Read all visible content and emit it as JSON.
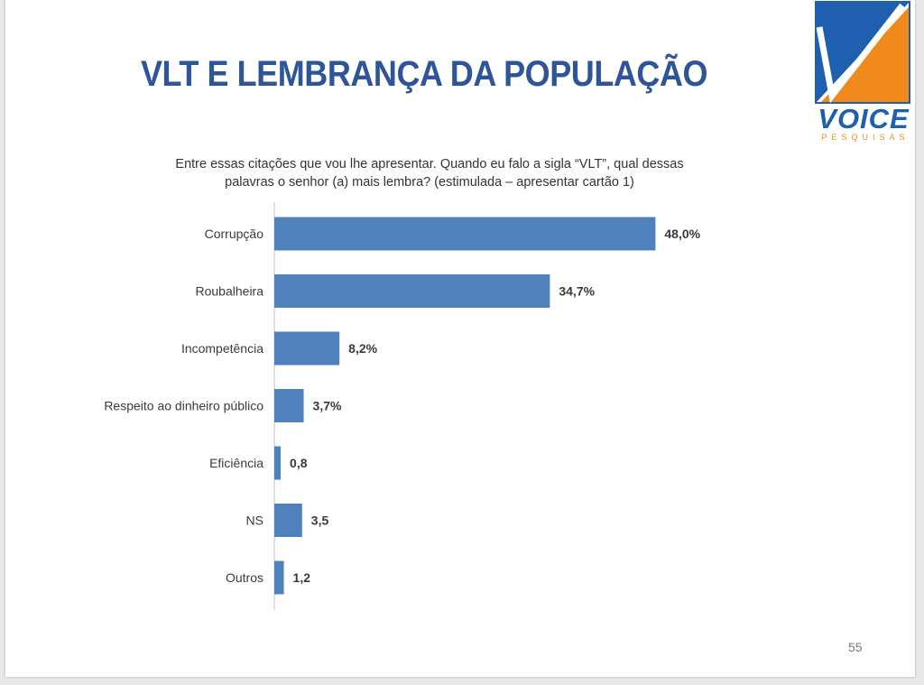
{
  "title": "VLT E LEMBRANÇA DA POPULAÇÃO",
  "subtitle_line1": "Entre essas citações que vou lhe apresentar. Quando eu falo a sigla “VLT”, qual dessas",
  "subtitle_line2": "palavras o senhor (a) mais lembra? (estimulada – apresentar cartão 1)",
  "logo": {
    "word": "VOICE",
    "sub": "PESQUISAS",
    "colors": {
      "blue": "#1f5fb0",
      "orange": "#f08a1c"
    }
  },
  "page_number": "55",
  "colors": {
    "title": "#2e5597",
    "bar": "#4f81bd"
  },
  "chart_data": {
    "type": "bar",
    "orientation": "horizontal",
    "categories": [
      "Corrupção",
      "Roubalheira",
      "Incompetência",
      "Respeito ao dinheiro público",
      "Eficiência",
      "NS",
      "Outros"
    ],
    "values": [
      48.0,
      34.7,
      8.2,
      3.7,
      0.8,
      3.5,
      1.2
    ],
    "value_labels": [
      "48,0%",
      "34,7%",
      "8,2%",
      "3,7%",
      "0,8",
      "3,5",
      "1,2"
    ],
    "xlim": [
      0,
      50
    ],
    "grid": false,
    "legend": "none"
  }
}
